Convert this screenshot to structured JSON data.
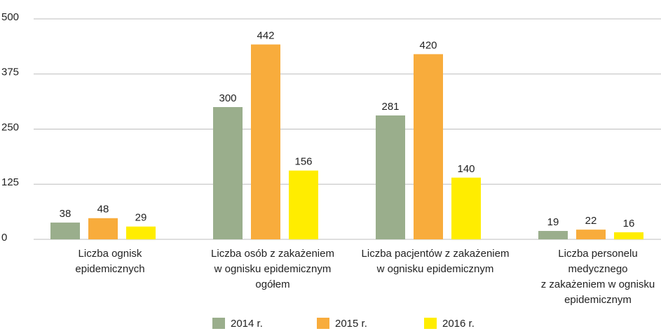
{
  "chart_data": {
    "type": "bar",
    "categories": [
      [
        "Liczba ognisk",
        "epidemicznych"
      ],
      [
        "Liczba osób z zakażeniem",
        "w ognisku epidemicznym",
        "ogółem"
      ],
      [
        "Liczba pacjentów z zakażeniem",
        "w ognisku epidemicznym"
      ],
      [
        "Liczba personelu",
        "medycznego",
        "z zakażeniem w ognisku",
        "epidemicznym"
      ]
    ],
    "series": [
      {
        "name": "2014 r.",
        "color": "#9aae8c",
        "values": [
          38,
          300,
          281,
          19
        ]
      },
      {
        "name": "2015 r.",
        "color": "#f8ac3c",
        "values": [
          48,
          442,
          420,
          22
        ]
      },
      {
        "name": "2016 r.",
        "color": "#ffed00",
        "values": [
          29,
          156,
          140,
          16
        ]
      }
    ],
    "ylim": [
      0,
      500
    ],
    "yticks": [
      0,
      125,
      250,
      375,
      500
    ],
    "grid": true,
    "legend": "bottom"
  }
}
